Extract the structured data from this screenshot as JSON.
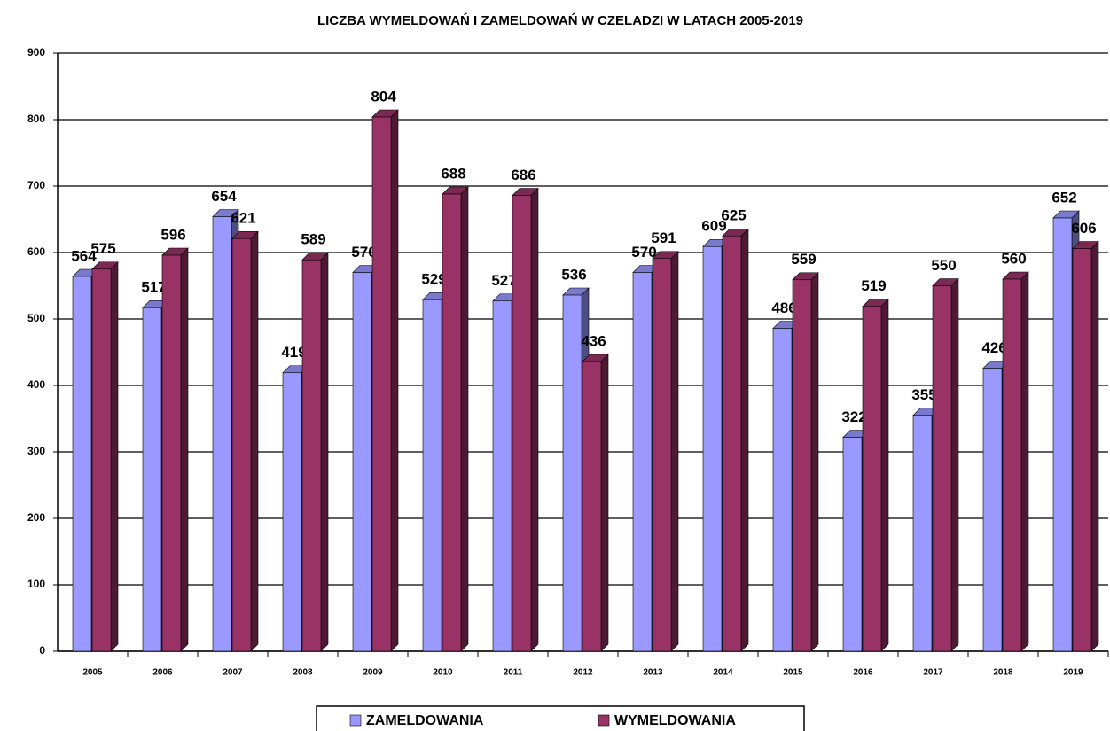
{
  "chart_data": {
    "type": "bar",
    "title": "LICZBA WYMELDOWAŃ I ZAMELDOWAŃ W CZELADZI W LATACH 2005-2019",
    "categories": [
      "2005",
      "2006",
      "2007",
      "2008",
      "2009",
      "2010",
      "2011",
      "2012",
      "2013",
      "2014",
      "2015",
      "2016",
      "2017",
      "2018",
      "2019"
    ],
    "series": [
      {
        "name": "ZAMELDOWANIA",
        "color": "#9999ff",
        "values": [
          564,
          517,
          654,
          419,
          570,
          529,
          527,
          536,
          570,
          609,
          486,
          322,
          355,
          426,
          652
        ]
      },
      {
        "name": "WYMELDOWANIA",
        "color": "#993366",
        "values": [
          575,
          596,
          621,
          589,
          804,
          688,
          686,
          436,
          591,
          625,
          559,
          519,
          550,
          560,
          606
        ]
      }
    ],
    "ylim": [
      0,
      900
    ],
    "yticks": [
      0,
      100,
      200,
      300,
      400,
      500,
      600,
      700,
      800,
      900
    ],
    "grid": true
  }
}
